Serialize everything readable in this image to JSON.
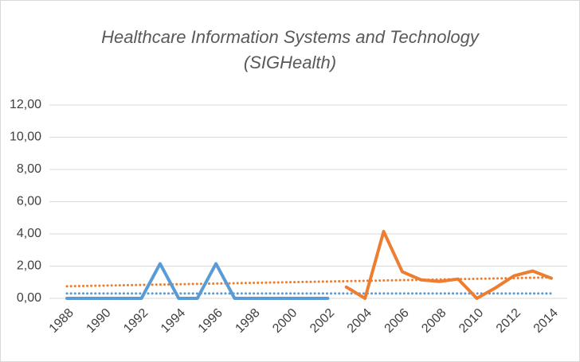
{
  "chart_data": {
    "type": "line",
    "title": [
      "Healthcare Information Systems and Technology",
      "(SIGHealth)"
    ],
    "categories": [
      "1988",
      null,
      "1990",
      null,
      "1992",
      null,
      "1994",
      null,
      "1996",
      null,
      "1998",
      null,
      "2000",
      null,
      "2002",
      null,
      "2004",
      null,
      "2006",
      null,
      "2008",
      null,
      "2010",
      null,
      "2012",
      null,
      "2014"
    ],
    "series": [
      {
        "color": "#5b9bd5",
        "values": [
          0,
          0,
          0,
          0,
          0,
          2.15,
          0,
          0,
          2.15,
          0,
          0,
          0,
          0,
          0,
          0,
          null,
          null,
          null,
          null,
          null,
          null,
          null,
          null,
          null,
          null,
          null,
          null
        ]
      },
      {
        "color": "#ed7d31",
        "values": [
          null,
          null,
          null,
          null,
          null,
          null,
          null,
          null,
          null,
          null,
          null,
          null,
          null,
          null,
          null,
          0.7,
          0,
          4.15,
          1.65,
          1.15,
          1.05,
          1.2,
          0,
          0.65,
          1.4,
          1.7,
          1.25
        ]
      }
    ],
    "trendlines": [
      {
        "color": "#5b9bd5",
        "values": [
          0.3,
          0.3
        ]
      },
      {
        "color": "#ed7d31",
        "values": [
          0.75,
          1.3
        ]
      }
    ],
    "ylim": [
      0,
      12
    ],
    "yticks": [
      {
        "value": 0,
        "label": "0,00"
      },
      {
        "value": 2,
        "label": "2,00"
      },
      {
        "value": 4,
        "label": "4,00"
      },
      {
        "value": 6,
        "label": "6,00"
      },
      {
        "value": 8,
        "label": "8,00"
      },
      {
        "value": 10,
        "label": "10,00"
      },
      {
        "value": 12,
        "label": "12,00"
      }
    ],
    "grid": true
  }
}
